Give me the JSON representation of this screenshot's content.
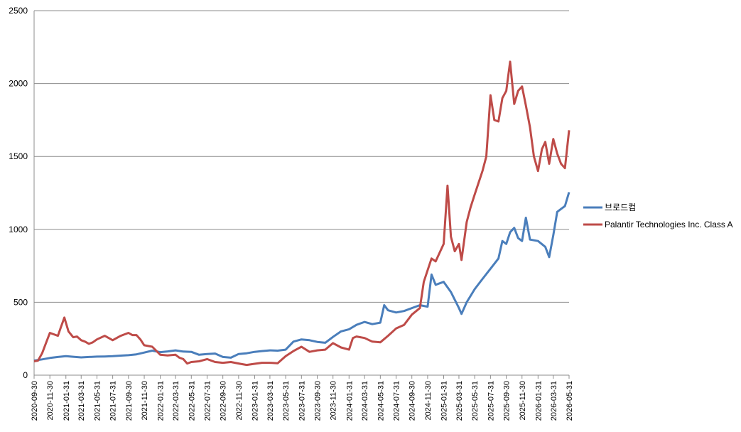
{
  "chart_data": {
    "type": "line",
    "ylim": [
      0,
      2500
    ],
    "yticks": [
      0,
      500,
      1000,
      1500,
      2000,
      2500
    ],
    "xlim": [
      "2020-09-30",
      "2026-05-31"
    ],
    "x_tick_labels": [
      "2020-09-30",
      "2020-11-30",
      "2021-01-31",
      "2021-03-31",
      "2021-05-31",
      "2021-07-31",
      "2021-09-30",
      "2021-11-30",
      "2022-01-31",
      "2022-03-31",
      "2022-05-31",
      "2022-07-31",
      "2022-09-30",
      "2022-11-30",
      "2023-01-31",
      "2023-03-31",
      "2023-05-31",
      "2023-07-31",
      "2023-09-30",
      "2023-11-30",
      "2024-01-31",
      "2024-03-31",
      "2024-05-31",
      "2024-07-31",
      "2024-09-30",
      "2024-11-30",
      "2025-01-31",
      "2025-03-31",
      "2025-05-31",
      "2025-07-31",
      "2025-09-30",
      "2025-11-30",
      "2026-01-31",
      "2026-03-31",
      "2026-05-31"
    ],
    "grid": true,
    "legend_position": "right",
    "series": [
      {
        "name": "브로드컴",
        "color": "#4a7ebb",
        "points": [
          [
            "2020-09-30",
            100
          ],
          [
            "2020-10-31",
            108
          ],
          [
            "2020-11-30",
            118
          ],
          [
            "2020-12-31",
            125
          ],
          [
            "2021-01-31",
            130
          ],
          [
            "2021-02-28",
            126
          ],
          [
            "2021-03-31",
            122
          ],
          [
            "2021-04-30",
            125
          ],
          [
            "2021-05-31",
            127
          ],
          [
            "2021-06-30",
            128
          ],
          [
            "2021-07-31",
            130
          ],
          [
            "2021-08-31",
            134
          ],
          [
            "2021-09-30",
            137
          ],
          [
            "2021-10-31",
            143
          ],
          [
            "2021-11-30",
            155
          ],
          [
            "2021-12-31",
            168
          ],
          [
            "2022-01-31",
            158
          ],
          [
            "2022-02-28",
            163
          ],
          [
            "2022-03-31",
            170
          ],
          [
            "2022-04-30",
            162
          ],
          [
            "2022-05-31",
            160
          ],
          [
            "2022-06-30",
            140
          ],
          [
            "2022-07-31",
            145
          ],
          [
            "2022-08-31",
            148
          ],
          [
            "2022-09-30",
            125
          ],
          [
            "2022-10-31",
            120
          ],
          [
            "2022-11-30",
            145
          ],
          [
            "2022-12-31",
            150
          ],
          [
            "2023-01-31",
            160
          ],
          [
            "2023-02-28",
            165
          ],
          [
            "2023-03-31",
            170
          ],
          [
            "2023-04-30",
            168
          ],
          [
            "2023-05-31",
            175
          ],
          [
            "2023-06-30",
            230
          ],
          [
            "2023-07-31",
            245
          ],
          [
            "2023-08-31",
            240
          ],
          [
            "2023-09-30",
            228
          ],
          [
            "2023-10-31",
            222
          ],
          [
            "2023-11-30",
            262
          ],
          [
            "2023-12-31",
            300
          ],
          [
            "2024-01-31",
            315
          ],
          [
            "2024-02-29",
            345
          ],
          [
            "2024-03-31",
            365
          ],
          [
            "2024-04-30",
            350
          ],
          [
            "2024-05-31",
            360
          ],
          [
            "2024-06-15",
            480
          ],
          [
            "2024-06-30",
            445
          ],
          [
            "2024-07-31",
            430
          ],
          [
            "2024-08-31",
            440
          ],
          [
            "2024-09-30",
            460
          ],
          [
            "2024-10-31",
            480
          ],
          [
            "2024-11-30",
            470
          ],
          [
            "2024-12-15",
            690
          ],
          [
            "2024-12-31",
            620
          ],
          [
            "2025-01-31",
            640
          ],
          [
            "2025-02-28",
            570
          ],
          [
            "2025-03-31",
            460
          ],
          [
            "2025-04-10",
            420
          ],
          [
            "2025-04-30",
            500
          ],
          [
            "2025-05-31",
            590
          ],
          [
            "2025-06-30",
            660
          ],
          [
            "2025-07-31",
            730
          ],
          [
            "2025-08-31",
            800
          ],
          [
            "2025-09-15",
            920
          ],
          [
            "2025-09-30",
            900
          ],
          [
            "2025-10-15",
            980
          ],
          [
            "2025-10-31",
            1010
          ],
          [
            "2025-11-15",
            940
          ],
          [
            "2025-11-30",
            920
          ],
          [
            "2025-12-15",
            1080
          ],
          [
            "2025-12-31",
            930
          ],
          [
            "2026-01-31",
            920
          ],
          [
            "2026-02-28",
            880
          ],
          [
            "2026-03-15",
            810
          ],
          [
            "2026-03-31",
            960
          ],
          [
            "2026-04-15",
            1120
          ],
          [
            "2026-04-30",
            1140
          ],
          [
            "2026-05-15",
            1160
          ],
          [
            "2026-05-31",
            1255
          ]
        ]
      },
      {
        "name": "Palantir Technologies Inc. Class A",
        "color": "#be4b48",
        "points": [
          [
            "2020-09-30",
            95
          ],
          [
            "2020-10-15",
            100
          ],
          [
            "2020-10-31",
            150
          ],
          [
            "2020-11-15",
            220
          ],
          [
            "2020-11-30",
            290
          ],
          [
            "2020-12-15",
            280
          ],
          [
            "2020-12-31",
            270
          ],
          [
            "2021-01-10",
            320
          ],
          [
            "2021-01-25",
            395
          ],
          [
            "2021-02-10",
            300
          ],
          [
            "2021-02-28",
            260
          ],
          [
            "2021-03-15",
            265
          ],
          [
            "2021-03-31",
            240
          ],
          [
            "2021-04-15",
            230
          ],
          [
            "2021-04-30",
            215
          ],
          [
            "2021-05-15",
            225
          ],
          [
            "2021-05-31",
            245
          ],
          [
            "2021-06-30",
            270
          ],
          [
            "2021-07-31",
            240
          ],
          [
            "2021-08-31",
            270
          ],
          [
            "2021-09-30",
            290
          ],
          [
            "2021-10-15",
            275
          ],
          [
            "2021-10-31",
            275
          ],
          [
            "2021-11-15",
            245
          ],
          [
            "2021-11-30",
            205
          ],
          [
            "2021-12-31",
            195
          ],
          [
            "2022-01-31",
            140
          ],
          [
            "2022-02-28",
            135
          ],
          [
            "2022-03-31",
            140
          ],
          [
            "2022-04-15",
            120
          ],
          [
            "2022-04-30",
            110
          ],
          [
            "2022-05-15",
            80
          ],
          [
            "2022-05-31",
            90
          ],
          [
            "2022-06-30",
            95
          ],
          [
            "2022-07-31",
            110
          ],
          [
            "2022-08-31",
            90
          ],
          [
            "2022-09-30",
            85
          ],
          [
            "2022-10-31",
            90
          ],
          [
            "2022-11-30",
            80
          ],
          [
            "2022-12-31",
            70
          ],
          [
            "2023-01-31",
            78
          ],
          [
            "2023-02-28",
            85
          ],
          [
            "2023-03-31",
            85
          ],
          [
            "2023-04-30",
            82
          ],
          [
            "2023-05-31",
            130
          ],
          [
            "2023-06-30",
            165
          ],
          [
            "2023-07-31",
            195
          ],
          [
            "2023-08-31",
            160
          ],
          [
            "2023-09-30",
            170
          ],
          [
            "2023-10-31",
            175
          ],
          [
            "2023-11-30",
            220
          ],
          [
            "2023-12-31",
            190
          ],
          [
            "2024-01-31",
            175
          ],
          [
            "2024-02-15",
            255
          ],
          [
            "2024-02-29",
            265
          ],
          [
            "2024-03-31",
            255
          ],
          [
            "2024-04-30",
            230
          ],
          [
            "2024-05-31",
            225
          ],
          [
            "2024-06-30",
            270
          ],
          [
            "2024-07-31",
            320
          ],
          [
            "2024-08-31",
            345
          ],
          [
            "2024-09-30",
            415
          ],
          [
            "2024-10-31",
            460
          ],
          [
            "2024-11-15",
            640
          ],
          [
            "2024-11-30",
            720
          ],
          [
            "2024-12-15",
            800
          ],
          [
            "2024-12-31",
            780
          ],
          [
            "2025-01-31",
            900
          ],
          [
            "2025-02-15",
            1300
          ],
          [
            "2025-02-28",
            950
          ],
          [
            "2025-03-15",
            850
          ],
          [
            "2025-03-31",
            900
          ],
          [
            "2025-04-10",
            790
          ],
          [
            "2025-04-30",
            1050
          ],
          [
            "2025-05-15",
            1150
          ],
          [
            "2025-05-31",
            1240
          ],
          [
            "2025-06-30",
            1400
          ],
          [
            "2025-07-15",
            1500
          ],
          [
            "2025-07-31",
            1920
          ],
          [
            "2025-08-15",
            1750
          ],
          [
            "2025-08-31",
            1740
          ],
          [
            "2025-09-15",
            1900
          ],
          [
            "2025-09-30",
            1950
          ],
          [
            "2025-10-15",
            2150
          ],
          [
            "2025-10-31",
            1860
          ],
          [
            "2025-11-15",
            1950
          ],
          [
            "2025-11-30",
            1980
          ],
          [
            "2025-12-15",
            1850
          ],
          [
            "2025-12-31",
            1700
          ],
          [
            "2026-01-15",
            1500
          ],
          [
            "2026-01-31",
            1400
          ],
          [
            "2026-02-15",
            1550
          ],
          [
            "2026-02-28",
            1600
          ],
          [
            "2026-03-15",
            1450
          ],
          [
            "2026-03-31",
            1620
          ],
          [
            "2026-04-15",
            1520
          ],
          [
            "2026-04-30",
            1450
          ],
          [
            "2026-05-15",
            1420
          ],
          [
            "2026-05-31",
            1680
          ]
        ]
      }
    ]
  }
}
